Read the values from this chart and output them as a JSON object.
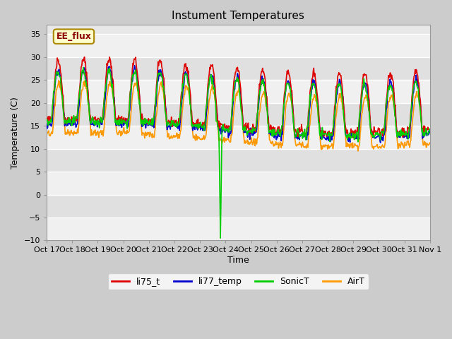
{
  "title": "Instument Temperatures",
  "xlabel": "Time",
  "ylabel": "Temperature (C)",
  "ylim": [
    -10,
    37
  ],
  "yticks": [
    -10,
    -5,
    0,
    5,
    10,
    15,
    20,
    25,
    30,
    35
  ],
  "x_labels": [
    "Oct 17",
    "Oct 18",
    "Oct 19",
    "Oct 20",
    "Oct 21",
    "Oct 22",
    "Oct 23",
    "Oct 24",
    "Oct 25",
    "Oct 26",
    "Oct 27",
    "Oct 28",
    "Oct 29",
    "Oct 30",
    "Oct 31",
    "Nov 1"
  ],
  "annotation_label": "EE_flux",
  "line_colors": {
    "li75_t": "#dd0000",
    "li77_temp": "#0000cc",
    "SonicT": "#00cc00",
    "AirT": "#ff9900"
  },
  "line_width": 1.2,
  "n_days": 15,
  "pts_per_day": 48
}
